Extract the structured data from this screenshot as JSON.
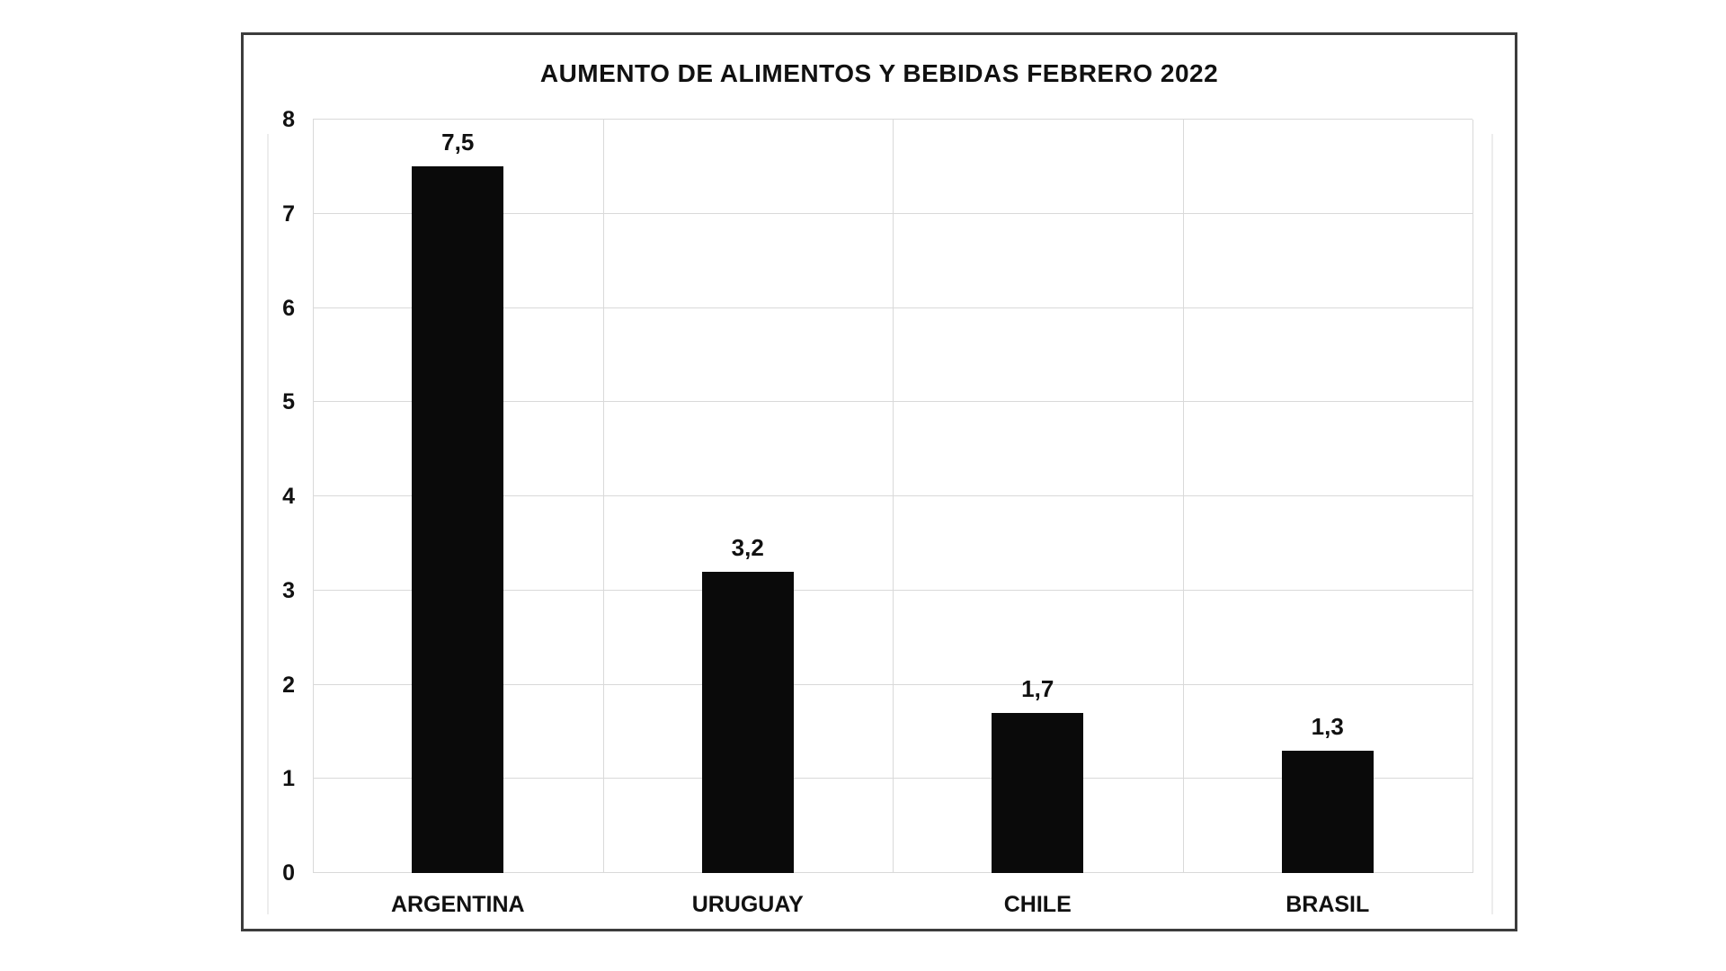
{
  "chart_data": {
    "type": "bar",
    "title": "AUMENTO DE ALIMENTOS Y BEBIDAS FEBRERO 2022",
    "categories": [
      "ARGENTINA",
      "URUGUAY",
      "CHILE",
      "BRASIL"
    ],
    "values": [
      7.5,
      3.2,
      1.7,
      1.3
    ],
    "value_labels": [
      "7,5",
      "3,2",
      "1,7",
      "1,3"
    ],
    "y_ticks": [
      0,
      1,
      2,
      3,
      4,
      5,
      6,
      7,
      8
    ],
    "ylim": [
      0,
      8
    ],
    "xlabel": "",
    "ylabel": "",
    "grid": "on",
    "legend": "none",
    "colors": {
      "bar": "#0a0a0a",
      "gridline": "#d9d9d9",
      "frame_border": "#3c3c3c",
      "text": "#111111",
      "background": "#ffffff"
    }
  }
}
